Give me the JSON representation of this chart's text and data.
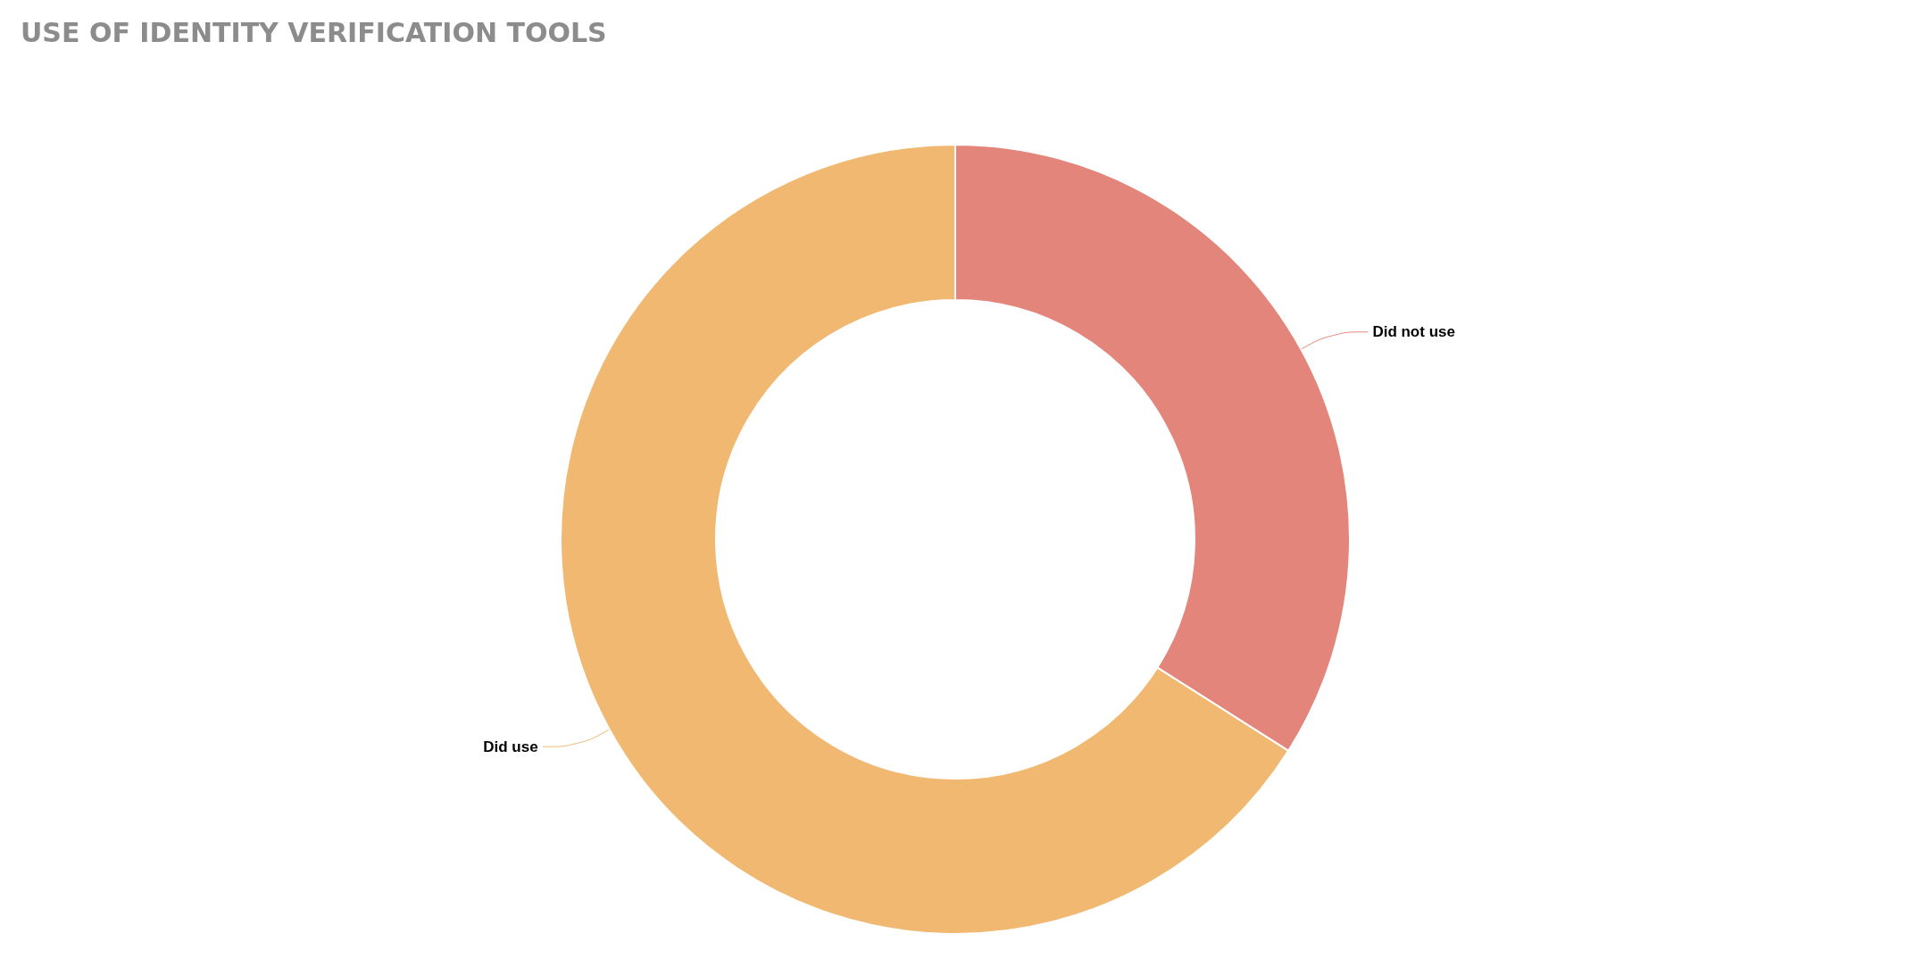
{
  "chart_data": {
    "type": "donut",
    "title": "USE OF IDENTITY VERIFICATION TOOLS",
    "categories": [
      "Did not use",
      "Did use"
    ],
    "values": [
      34,
      66
    ],
    "colors": [
      "#e3857a",
      "#f1b871"
    ],
    "legend": false
  }
}
